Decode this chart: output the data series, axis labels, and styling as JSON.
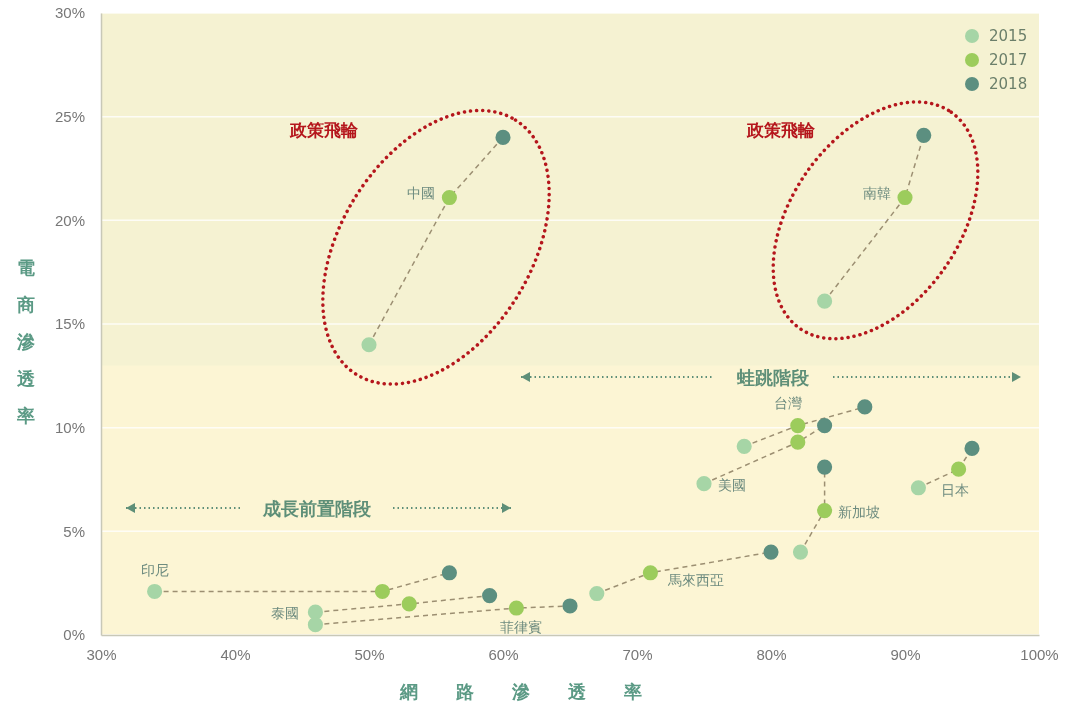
{
  "chart_data": {
    "type": "scatter",
    "xlabel": "網路滲透率",
    "ylabel": "電商滲透率",
    "xlim": [
      30,
      100
    ],
    "ylim": [
      0,
      30
    ],
    "xticks": [
      {
        "value": 30,
        "label": "30%"
      },
      {
        "value": 40,
        "label": "40%"
      },
      {
        "value": 50,
        "label": "50%"
      },
      {
        "value": 60,
        "label": "60%"
      },
      {
        "value": 70,
        "label": "70%"
      },
      {
        "value": 80,
        "label": "80%"
      },
      {
        "value": 90,
        "label": "90%"
      },
      {
        "value": 100,
        "label": "100%"
      }
    ],
    "yticks": [
      {
        "value": 0,
        "label": "0%"
      },
      {
        "value": 5,
        "label": "5%"
      },
      {
        "value": 10,
        "label": "10%"
      },
      {
        "value": 15,
        "label": "15%"
      },
      {
        "value": 20,
        "label": "20%"
      },
      {
        "value": 25,
        "label": "25%"
      },
      {
        "value": 30,
        "label": "30%"
      }
    ],
    "grid": "y",
    "legend": "top right",
    "marker": "circle",
    "bands": [
      {
        "axis": "y",
        "from": 13,
        "to": 30,
        "color": "#f5f2d2"
      }
    ],
    "series": [
      {
        "type": "line",
        "line_style": "dashed",
        "marker": "none",
        "color": "#9c8f72",
        "x": [
          50,
          56,
          60
        ],
        "values": [
          14,
          21.1,
          24
        ]
      },
      {
        "type": "line",
        "line_style": "dashed",
        "marker": "none",
        "color": "#9c8f72",
        "x": [
          84,
          90,
          91.4
        ],
        "values": [
          16.1,
          21.1,
          24.1
        ]
      },
      {
        "type": "line",
        "line_style": "dashed",
        "marker": "none",
        "color": "#9c8f72",
        "x": [
          78,
          82,
          87
        ],
        "values": [
          9.1,
          10.1,
          11
        ]
      },
      {
        "type": "line",
        "line_style": "dashed",
        "marker": "none",
        "color": "#9c8f72",
        "x": [
          75,
          82,
          84
        ],
        "values": [
          7.3,
          9.3,
          10.1
        ]
      },
      {
        "type": "line",
        "line_style": "dashed",
        "marker": "none",
        "color": "#9c8f72",
        "x": [
          82.2,
          84,
          84
        ],
        "values": [
          4,
          6,
          8.1
        ]
      },
      {
        "type": "line",
        "line_style": "dashed",
        "marker": "none",
        "color": "#9c8f72",
        "x": [
          91,
          94,
          95
        ],
        "values": [
          7.1,
          8,
          9
        ]
      },
      {
        "type": "line",
        "line_style": "dashed",
        "marker": "none",
        "color": "#9c8f72",
        "x": [
          67,
          71,
          80
        ],
        "values": [
          2,
          3,
          4
        ]
      },
      {
        "type": "line",
        "line_style": "dashed",
        "marker": "none",
        "color": "#9c8f72",
        "x": [
          34,
          51,
          56
        ],
        "values": [
          2.1,
          2.1,
          3
        ]
      },
      {
        "type": "line",
        "line_style": "dashed",
        "marker": "none",
        "color": "#9c8f72",
        "x": [
          46,
          53,
          59
        ],
        "values": [
          1.1,
          1.5,
          1.9
        ]
      },
      {
        "type": "line",
        "line_style": "dashed",
        "marker": "none",
        "color": "#9c8f72",
        "x": [
          46,
          61,
          65
        ],
        "values": [
          0.5,
          1.3,
          1.4
        ]
      },
      {
        "name": "2015",
        "color": "#a6d5a6",
        "x": [
          50,
          84,
          78,
          75,
          82.2,
          91,
          67,
          34,
          46,
          46
        ],
        "values": [
          14,
          16.1,
          9.1,
          7.3,
          4,
          7.1,
          2,
          2.1,
          1.1,
          0.5
        ]
      },
      {
        "name": "2017",
        "color": "#9ccc5c",
        "x": [
          56,
          90,
          82,
          82,
          84,
          94,
          71,
          51,
          53,
          61
        ],
        "values": [
          21.1,
          21.1,
          10.1,
          9.3,
          6,
          8,
          3,
          2.1,
          1.5,
          1.3
        ]
      },
      {
        "name": "2018",
        "color": "#5c8f80",
        "x": [
          60,
          91.4,
          87,
          84,
          84,
          95,
          80,
          56,
          59,
          65
        ],
        "values": [
          24,
          24.1,
          11,
          10.1,
          8.1,
          9,
          4,
          3,
          1.9,
          1.4
        ]
      }
    ],
    "annotations": [
      "政策飛輪",
      "政策飛輪",
      "蛙跳階段",
      "成長前置階段",
      {
        "text": "中國",
        "x": 56,
        "y": 21.1
      },
      {
        "text": "南韓",
        "x": 90,
        "y": 21.1
      },
      {
        "text": "台灣",
        "x": 82,
        "y": 10.1
      },
      {
        "text": "美國",
        "x": 75,
        "y": 7.3
      },
      {
        "text": "新加坡",
        "x": 84,
        "y": 6
      },
      {
        "text": "日本",
        "x": 94,
        "y": 8
      },
      {
        "text": "馬來西亞",
        "x": 71,
        "y": 3
      },
      {
        "text": "印尼",
        "x": 34,
        "y": 2.1
      },
      {
        "text": "泰國",
        "x": 46,
        "y": 1.1
      },
      {
        "text": "菲律賓",
        "x": 61,
        "y": 1.3
      }
    ]
  }
}
